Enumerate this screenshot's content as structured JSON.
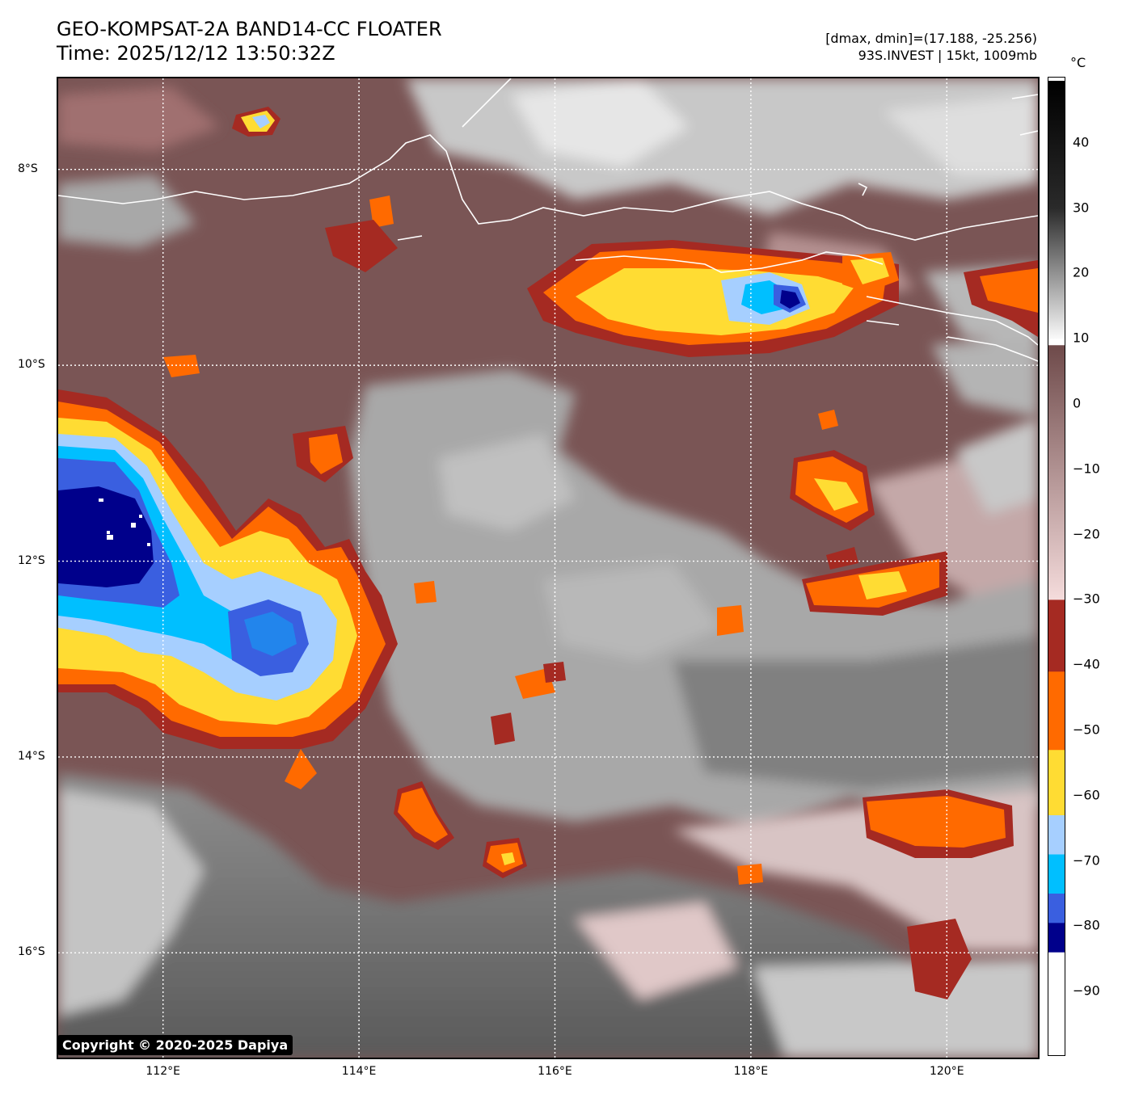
{
  "title": {
    "line1": "GEO-KOMPSAT-2A BAND14-CC FLOATER",
    "line2": "Time: 2025/12/12 13:50:32Z"
  },
  "info": {
    "line1": "[dmax, dmin]=(17.188, -25.256)",
    "line2": "93S.INVEST | 15kt, 1009mb"
  },
  "copyright": "Copyright © 2020-2025 Dapiya",
  "map": {
    "lat_labels": [
      {
        "text": "8°S",
        "lat": -8
      },
      {
        "text": "10°S",
        "lat": -10
      },
      {
        "text": "12°S",
        "lat": -12
      },
      {
        "text": "14°S",
        "lat": -14
      },
      {
        "text": "16°S",
        "lat": -16
      }
    ],
    "lon_labels": [
      {
        "text": "112°E",
        "lon": 112
      },
      {
        "text": "114°E",
        "lon": 114
      },
      {
        "text": "116°E",
        "lon": 116
      },
      {
        "text": "118°E",
        "lon": 118
      },
      {
        "text": "120°E",
        "lon": 120
      }
    ],
    "lon_range": [
      110.93,
      120.93
    ],
    "lat_range": [
      -17.07,
      -7.07
    ],
    "gridlines": "dotted-white"
  },
  "colorbar": {
    "unit": "°C",
    "ticks": [
      {
        "text": "40",
        "value": 40
      },
      {
        "text": "30",
        "value": 30
      },
      {
        "text": "20",
        "value": 20
      },
      {
        "text": "10",
        "value": 10
      },
      {
        "text": "0",
        "value": 0
      },
      {
        "text": "−10",
        "value": -10
      },
      {
        "text": "−20",
        "value": -20
      },
      {
        "text": "−30",
        "value": -30
      },
      {
        "text": "−40",
        "value": -40
      },
      {
        "text": "−50",
        "value": -50
      },
      {
        "text": "−60",
        "value": -60
      },
      {
        "text": "−70",
        "value": -70
      },
      {
        "text": "−80",
        "value": -80
      },
      {
        "text": "−90",
        "value": -90
      }
    ],
    "range": [
      -100,
      50
    ],
    "segments": [
      {
        "from": 49.5,
        "to": 30,
        "c1": "#000000",
        "c2": "#2a2a2a"
      },
      {
        "from": 30,
        "to": 10,
        "c1": "#2a2a2a",
        "c2": "#fafafa"
      },
      {
        "from": 9,
        "to": -30,
        "c1": "#6e4a4a",
        "c2": "#f5dcdc"
      },
      {
        "from": -30,
        "to": -41,
        "c1": "#a52a22",
        "c2": "#a52a22"
      },
      {
        "from": -41,
        "to": -53,
        "c1": "#ff6a00",
        "c2": "#ff6a00"
      },
      {
        "from": -53,
        "to": -63,
        "c1": "#ffdc33",
        "c2": "#ffdc33"
      },
      {
        "from": -63,
        "to": -69,
        "c1": "#a6cfff",
        "c2": "#a6cfff"
      },
      {
        "from": -69,
        "to": -75,
        "c1": "#00bfff",
        "c2": "#00bfff"
      },
      {
        "from": -75,
        "to": -79.5,
        "c1": "#3a5fe0",
        "c2": "#3a5fe0"
      },
      {
        "from": -79.5,
        "to": -84,
        "c1": "#00008b",
        "c2": "#00008b"
      },
      {
        "from": -84,
        "to": -99.5,
        "c1": "#ffffff",
        "c2": "#ffffff"
      }
    ]
  },
  "palette": {
    "warm_brown": "#7a5555",
    "pink": "#dcb8b8",
    "gray_light": "#c8c8c8",
    "gray_mid": "#9a9a9a",
    "gray_dark": "#6a6a6a",
    "dark_red": "#a52a22",
    "orange": "#ff6a00",
    "yellow": "#ffdc33",
    "light_blue": "#a6cfff",
    "cyan": "#00bfff",
    "blue": "#3a5fe0",
    "navy": "#00008b"
  }
}
